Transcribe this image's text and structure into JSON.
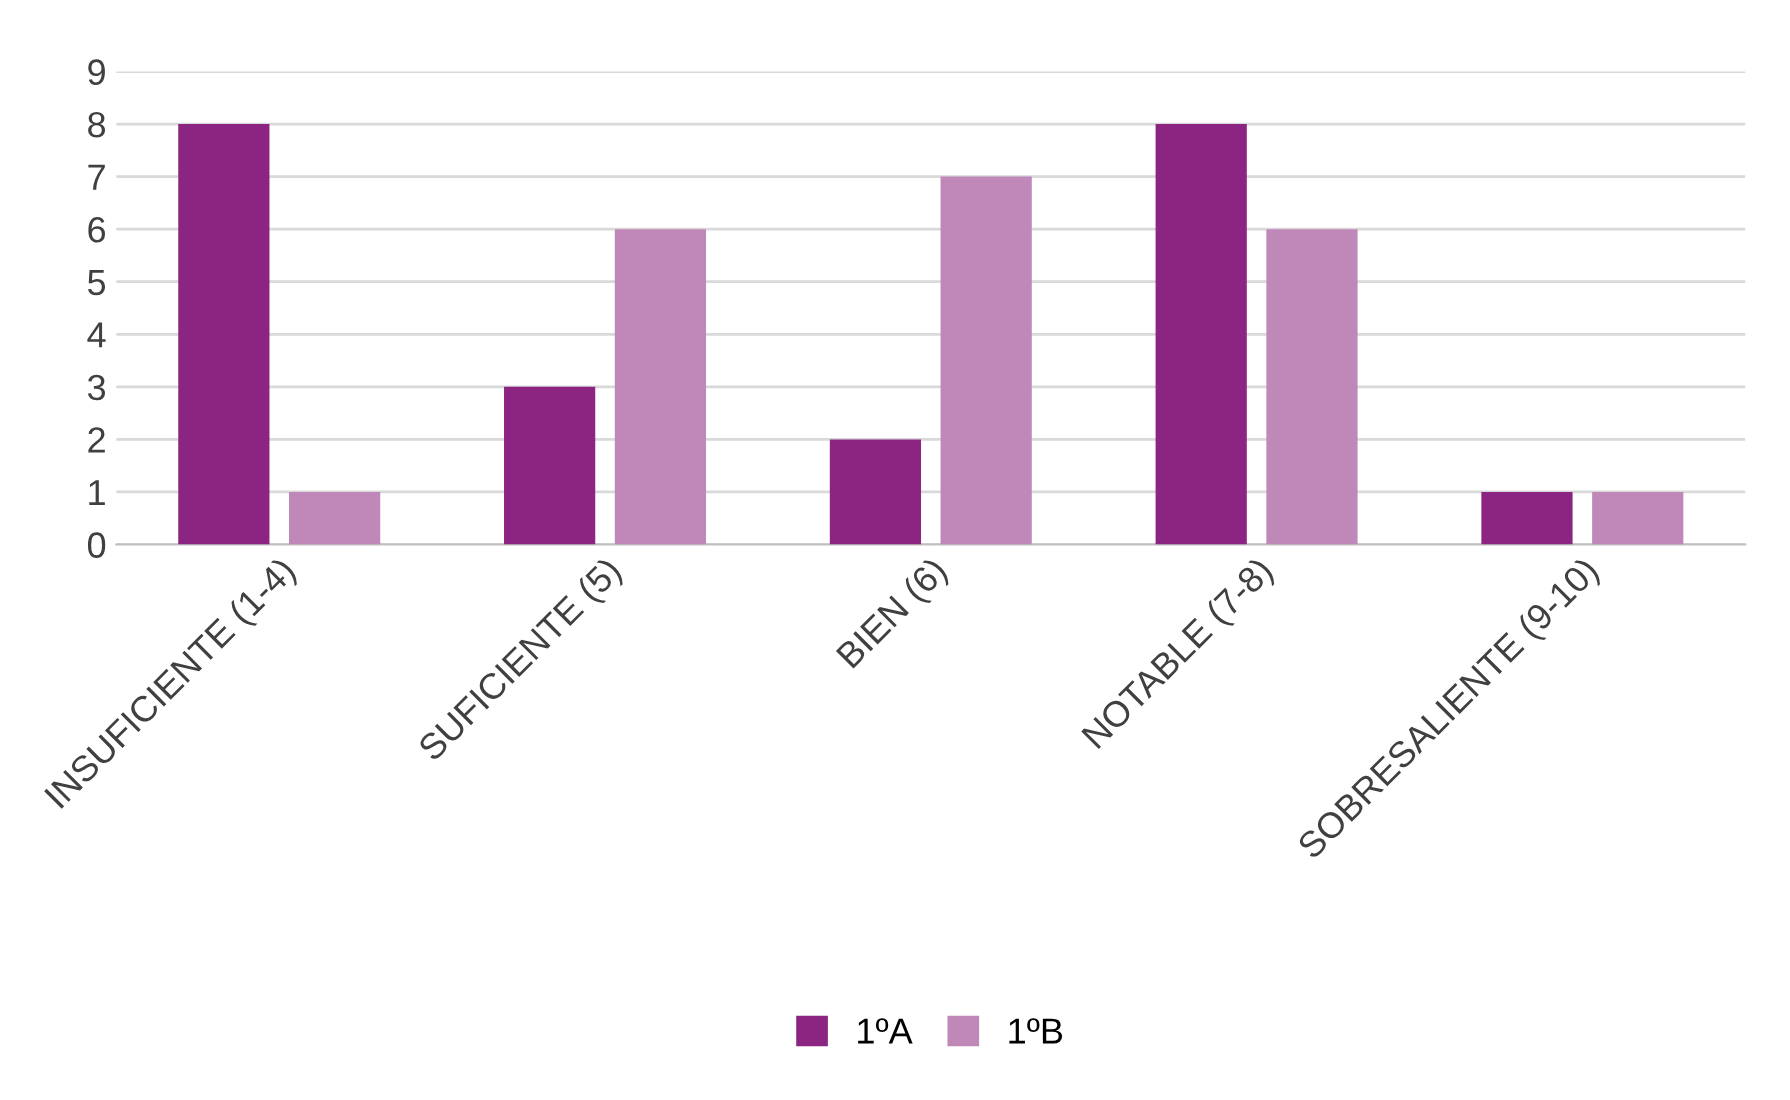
{
  "chart_data": {
    "type": "bar",
    "categories": [
      "INSUFICIENTE (1-4)",
      "SUFICIENTE (5)",
      "BIEN (6)",
      "NOTABLE (7-8)",
      "SOBRESALIENTE (9-10)"
    ],
    "series": [
      {
        "name": "1ºA",
        "color": "#8b2581",
        "values": [
          8,
          3,
          2,
          8,
          1
        ]
      },
      {
        "name": "1ºB",
        "color": "#bf88b9",
        "values": [
          1,
          6,
          7,
          6,
          1
        ]
      }
    ],
    "ylim": [
      0,
      9
    ],
    "yticks": [
      0,
      1,
      2,
      3,
      4,
      5,
      6,
      7,
      8,
      9
    ],
    "grid": "y",
    "legend": "bottom"
  }
}
